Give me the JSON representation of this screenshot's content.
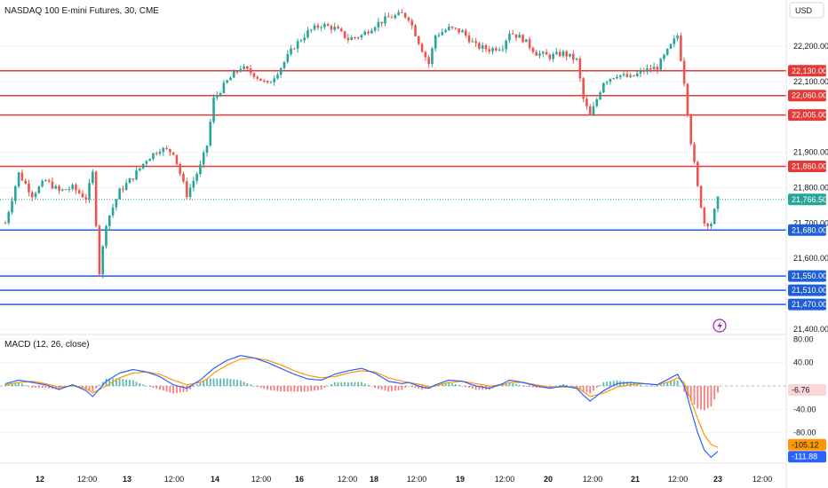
{
  "header": {
    "title": "NASDAQ 100 E-mini Futures, 30, CME",
    "currency": "USD",
    "macd_title": "MACD (12, 26, close)"
  },
  "colors": {
    "up": "#26a69a",
    "down": "#ef5350",
    "resistance": "#e53935",
    "support": "#1e5fd8",
    "last_price": "#26a69a",
    "macd_line": "#2962ff",
    "signal_line": "#ff9800",
    "lightning": "#9c27b0"
  },
  "chart_data": [
    {
      "type": "candlestick",
      "title": "NASDAQ 100 E-mini Futures, 30, CME",
      "ylim": [
        21385,
        22330
      ],
      "y_ticks": [
        {
          "value": 22200,
          "label": "22,200.00"
        },
        {
          "value": 22100,
          "label": "22,100.00"
        },
        {
          "value": 21900,
          "label": "21,900.00"
        },
        {
          "value": 21800,
          "label": "21,800.00"
        },
        {
          "value": 21700,
          "label": "21,700.00"
        },
        {
          "value": 21600,
          "label": "21,600.00"
        },
        {
          "value": 21400,
          "label": "21,400.00"
        }
      ],
      "x_labels": [
        "12",
        "12:00",
        "13",
        "12:00",
        "14",
        "12:00",
        "16",
        "12:00",
        "18",
        "12:00",
        "19",
        "12:00",
        "20",
        "12:00",
        "21",
        "12:00",
        "23",
        "12:00"
      ],
      "resistance_levels": [
        {
          "value": 22130,
          "label": "22,130.00"
        },
        {
          "value": 22060,
          "label": "22,060.00"
        },
        {
          "value": 22005,
          "label": "22,005.00"
        },
        {
          "value": 21860,
          "label": "21,860.00"
        }
      ],
      "support_levels": [
        {
          "value": 21680,
          "label": "21,680.00"
        },
        {
          "value": 21550,
          "label": "21,550.00"
        },
        {
          "value": 21510,
          "label": "21,510.00"
        },
        {
          "value": 21470,
          "label": "21,470.00"
        }
      ],
      "last_price": {
        "value": 21766.5,
        "label": "21,766.50"
      },
      "price_path": [
        [
          0,
          21700
        ],
        [
          4,
          21840
        ],
        [
          8,
          21780
        ],
        [
          12,
          21820
        ],
        [
          16,
          21790
        ],
        [
          20,
          21800
        ],
        [
          24,
          21770
        ],
        [
          26,
          21840
        ],
        [
          28,
          21560
        ],
        [
          30,
          21700
        ],
        [
          34,
          21790
        ],
        [
          38,
          21830
        ],
        [
          42,
          21880
        ],
        [
          46,
          21910
        ],
        [
          50,
          21900
        ],
        [
          54,
          21780
        ],
        [
          58,
          21860
        ],
        [
          60,
          21920
        ],
        [
          62,
          22050
        ],
        [
          66,
          22100
        ],
        [
          70,
          22140
        ],
        [
          74,
          22120
        ],
        [
          78,
          22090
        ],
        [
          82,
          22140
        ],
        [
          86,
          22200
        ],
        [
          90,
          22240
        ],
        [
          94,
          22260
        ],
        [
          98,
          22250
        ],
        [
          102,
          22220
        ],
        [
          106,
          22230
        ],
        [
          110,
          22260
        ],
        [
          114,
          22280
        ],
        [
          118,
          22290
        ],
        [
          120,
          22280
        ],
        [
          124,
          22190
        ],
        [
          126,
          22150
        ],
        [
          128,
          22230
        ],
        [
          132,
          22250
        ],
        [
          136,
          22240
        ],
        [
          140,
          22200
        ],
        [
          144,
          22190
        ],
        [
          148,
          22200
        ],
        [
          150,
          22240
        ],
        [
          154,
          22220
        ],
        [
          158,
          22180
        ],
        [
          162,
          22170
        ],
        [
          166,
          22180
        ],
        [
          170,
          22160
        ],
        [
          172,
          22050
        ],
        [
          174,
          22000
        ],
        [
          178,
          22100
        ],
        [
          182,
          22120
        ],
        [
          186,
          22110
        ],
        [
          190,
          22130
        ],
        [
          194,
          22140
        ],
        [
          198,
          22200
        ],
        [
          200,
          22230
        ],
        [
          202,
          22100
        ],
        [
          204,
          21930
        ],
        [
          206,
          21800
        ],
        [
          208,
          21700
        ],
        [
          210,
          21700
        ],
        [
          212,
          21766.5
        ]
      ]
    },
    {
      "type": "line",
      "title": "MACD (12, 26, close)",
      "ylim": [
        -132,
        88
      ],
      "y_ticks": [
        {
          "value": 80,
          "label": "80.00"
        },
        {
          "value": 40,
          "label": "40.00"
        },
        {
          "value": -40,
          "label": "-40.00"
        },
        {
          "value": -80,
          "label": "-80.00"
        }
      ],
      "histogram_tag": {
        "value": -6.76,
        "label": "-6.76"
      },
      "signal_tag": {
        "value": -105.12,
        "label": "-105.12"
      },
      "macd_tag": {
        "value": -111.88,
        "label": "-111.88"
      },
      "macd_path": [
        [
          0,
          4
        ],
        [
          4,
          10
        ],
        [
          8,
          6
        ],
        [
          12,
          2
        ],
        [
          16,
          -6
        ],
        [
          20,
          2
        ],
        [
          24,
          -8
        ],
        [
          26,
          -18
        ],
        [
          30,
          8
        ],
        [
          34,
          22
        ],
        [
          38,
          28
        ],
        [
          42,
          24
        ],
        [
          46,
          16
        ],
        [
          50,
          2
        ],
        [
          54,
          -4
        ],
        [
          58,
          10
        ],
        [
          60,
          20
        ],
        [
          62,
          30
        ],
        [
          66,
          44
        ],
        [
          70,
          52
        ],
        [
          74,
          48
        ],
        [
          78,
          40
        ],
        [
          82,
          30
        ],
        [
          86,
          20
        ],
        [
          90,
          12
        ],
        [
          94,
          10
        ],
        [
          98,
          20
        ],
        [
          102,
          26
        ],
        [
          106,
          30
        ],
        [
          110,
          22
        ],
        [
          114,
          8
        ],
        [
          118,
          4
        ],
        [
          120,
          6
        ],
        [
          124,
          -2
        ],
        [
          126,
          -4
        ],
        [
          128,
          2
        ],
        [
          132,
          10
        ],
        [
          136,
          8
        ],
        [
          140,
          0
        ],
        [
          144,
          -4
        ],
        [
          148,
          4
        ],
        [
          150,
          10
        ],
        [
          154,
          6
        ],
        [
          158,
          0
        ],
        [
          162,
          -4
        ],
        [
          166,
          0
        ],
        [
          170,
          -4
        ],
        [
          172,
          -16
        ],
        [
          174,
          -26
        ],
        [
          178,
          -8
        ],
        [
          182,
          4
        ],
        [
          186,
          6
        ],
        [
          190,
          4
        ],
        [
          194,
          2
        ],
        [
          198,
          14
        ],
        [
          200,
          20
        ],
        [
          202,
          0
        ],
        [
          204,
          -40
        ],
        [
          206,
          -80
        ],
        [
          208,
          -110
        ],
        [
          210,
          -122
        ],
        [
          212,
          -112
        ]
      ],
      "signal_path": [
        [
          0,
          2
        ],
        [
          4,
          6
        ],
        [
          8,
          8
        ],
        [
          12,
          4
        ],
        [
          16,
          -2
        ],
        [
          20,
          0
        ],
        [
          24,
          -4
        ],
        [
          26,
          -12
        ],
        [
          30,
          0
        ],
        [
          34,
          14
        ],
        [
          38,
          22
        ],
        [
          42,
          24
        ],
        [
          46,
          20
        ],
        [
          50,
          10
        ],
        [
          54,
          2
        ],
        [
          58,
          6
        ],
        [
          60,
          12
        ],
        [
          62,
          22
        ],
        [
          66,
          36
        ],
        [
          70,
          46
        ],
        [
          74,
          48
        ],
        [
          78,
          44
        ],
        [
          82,
          36
        ],
        [
          86,
          26
        ],
        [
          90,
          18
        ],
        [
          94,
          14
        ],
        [
          98,
          16
        ],
        [
          102,
          22
        ],
        [
          106,
          26
        ],
        [
          110,
          24
        ],
        [
          114,
          14
        ],
        [
          118,
          8
        ],
        [
          120,
          6
        ],
        [
          124,
          2
        ],
        [
          126,
          -2
        ],
        [
          128,
          0
        ],
        [
          132,
          6
        ],
        [
          136,
          8
        ],
        [
          140,
          4
        ],
        [
          144,
          0
        ],
        [
          148,
          2
        ],
        [
          150,
          6
        ],
        [
          154,
          6
        ],
        [
          158,
          2
        ],
        [
          162,
          -2
        ],
        [
          166,
          -2
        ],
        [
          170,
          -2
        ],
        [
          172,
          -10
        ],
        [
          174,
          -18
        ],
        [
          178,
          -12
        ],
        [
          182,
          -2
        ],
        [
          186,
          2
        ],
        [
          190,
          4
        ],
        [
          194,
          2
        ],
        [
          198,
          8
        ],
        [
          200,
          14
        ],
        [
          202,
          6
        ],
        [
          204,
          -24
        ],
        [
          206,
          -56
        ],
        [
          208,
          -84
        ],
        [
          210,
          -100
        ],
        [
          212,
          -105
        ]
      ]
    }
  ]
}
